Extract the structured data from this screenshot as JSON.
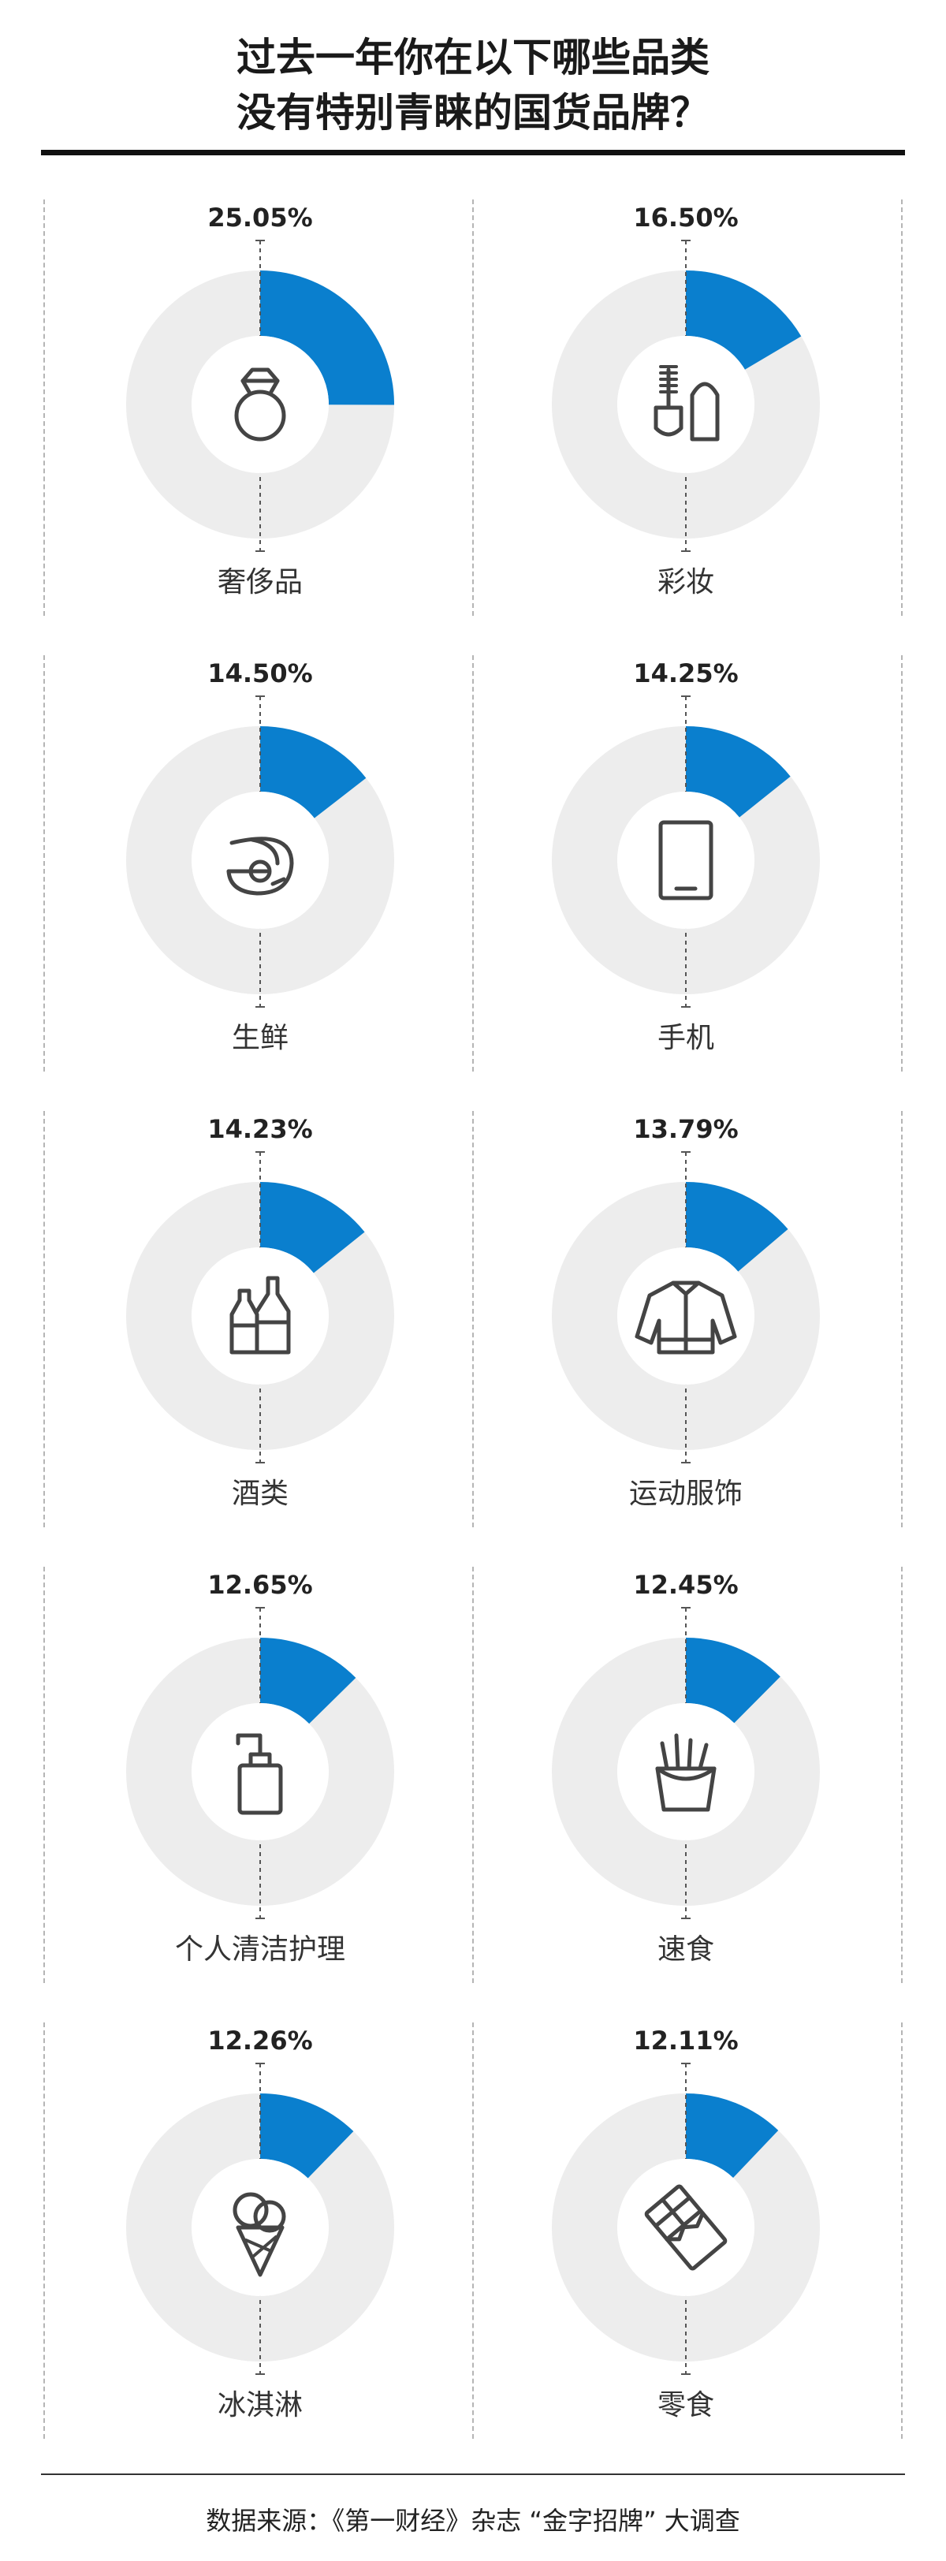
{
  "title": {
    "line1": "过去一年你在以下哪些品类",
    "line2": "没有特别青睐的国货品牌？"
  },
  "source": "数据来源：《第一财经》杂志 “金字招牌” 大调查",
  "colors": {
    "accent": "#0a7fce",
    "track": "#ededed",
    "icon": "#444444"
  },
  "chart_data": {
    "type": "pie",
    "ylim": [
      0,
      100
    ],
    "unit": "%",
    "categories": [
      "奢侈品",
      "彩妆",
      "生鲜",
      "手机",
      "酒类",
      "运动服饰",
      "个人清洁护理",
      "速食",
      "冰淇淋",
      "零食"
    ],
    "values": [
      25.05,
      16.5,
      14.5,
      14.25,
      14.23,
      13.79,
      12.65,
      12.45,
      12.26,
      12.11
    ],
    "value_labels": [
      "25.05%",
      "16.50%",
      "14.50%",
      "14.25%",
      "14.23%",
      "13.79%",
      "12.65%",
      "12.45%",
      "12.26%",
      "12.11%"
    ],
    "icons": [
      "ring-icon",
      "cosmetics-icon",
      "shrimp-icon",
      "phone-icon",
      "bottles-icon",
      "jacket-icon",
      "pump-bottle-icon",
      "fries-icon",
      "ice-cream-icon",
      "chocolate-icon"
    ]
  }
}
